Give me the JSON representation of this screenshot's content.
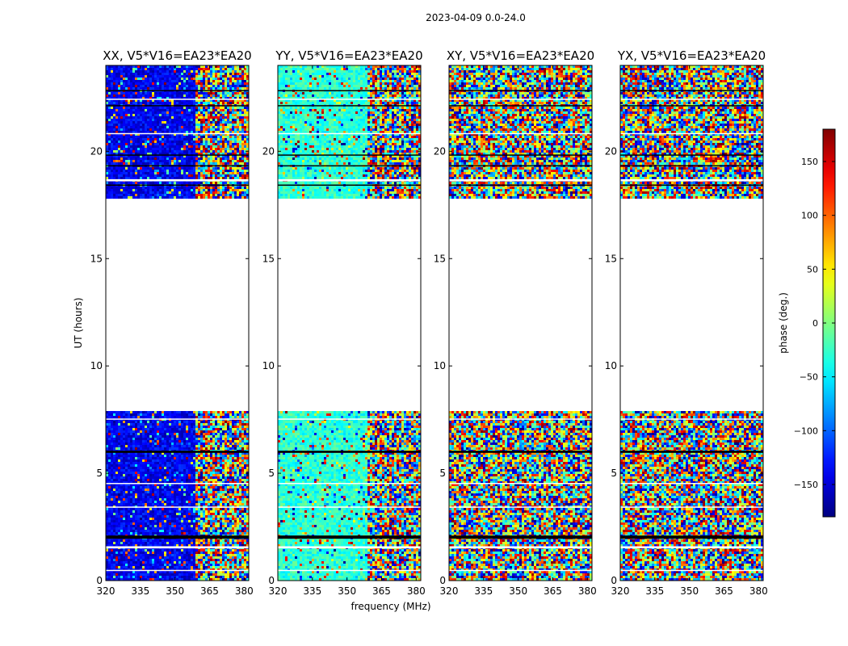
{
  "figure": {
    "suptitle": "2023-04-09 0.0-24.0",
    "xlabel": "frequency (MHz)",
    "ylabel": "UT (hours)"
  },
  "chart_data": {
    "type": "heatmap",
    "subtitle": "2023-04-09 0.0-24.0",
    "xlabel": "frequency (MHz)",
    "ylabel": "UT (hours)",
    "xlim": [
      320,
      382
    ],
    "ylim": [
      0,
      24
    ],
    "xticks": [
      320,
      335,
      350,
      365,
      380
    ],
    "yticks": [
      0,
      5,
      10,
      15,
      20
    ],
    "data_time_ranges_hours": [
      [
        0.0,
        7.9
      ],
      [
        17.8,
        24.0
      ]
    ],
    "black_flag_bands_hours": [
      [
        1.95,
        2.1
      ],
      [
        5.95,
        6.05
      ],
      [
        18.4,
        18.45
      ],
      [
        19.3,
        19.35
      ],
      [
        19.8,
        19.85
      ],
      [
        22.1,
        22.15
      ],
      [
        22.8,
        22.85
      ]
    ],
    "white_flag_bands_hours": [
      [
        0.45,
        0.5
      ],
      [
        1.5,
        1.6
      ],
      [
        3.4,
        3.45
      ],
      [
        4.5,
        4.55
      ],
      [
        7.5,
        7.55
      ],
      [
        18.6,
        18.7
      ],
      [
        20.8,
        20.85
      ],
      [
        22.4,
        22.45
      ]
    ],
    "grid": false,
    "colorbar": {
      "label": "phase (deg.)",
      "range": [
        -180,
        180
      ],
      "ticks": [
        -150,
        -100,
        -50,
        0,
        50,
        100,
        150
      ],
      "colormap": [
        "#00007f",
        "#0000ff",
        "#007fff",
        "#00ffff",
        "#7fff7f",
        "#ffff00",
        "#ff7f00",
        "#ff0000",
        "#7f0000"
      ]
    },
    "panels": [
      {
        "title": "XX, V5*V16=EA23*EA20",
        "pattern": "coherent_blue_low_freq",
        "mean_phase_deg": -140
      },
      {
        "title": "YY, V5*V16=EA23*EA20",
        "pattern": "coherent_cyan_green_low_freq",
        "mean_phase_deg": -30
      },
      {
        "title": "XY, V5*V16=EA23*EA20",
        "pattern": "noise",
        "mean_phase_deg": 0
      },
      {
        "title": "YX, V5*V16=EA23*EA20",
        "pattern": "noise",
        "mean_phase_deg": 0
      }
    ],
    "tick_labels": {
      "x": [
        "320",
        "335",
        "350",
        "365",
        "380"
      ],
      "y": [
        "0",
        "5",
        "10",
        "15",
        "20"
      ],
      "colorbar": [
        "−150",
        "−100",
        "−50",
        "0",
        "50",
        "100",
        "150"
      ]
    }
  }
}
